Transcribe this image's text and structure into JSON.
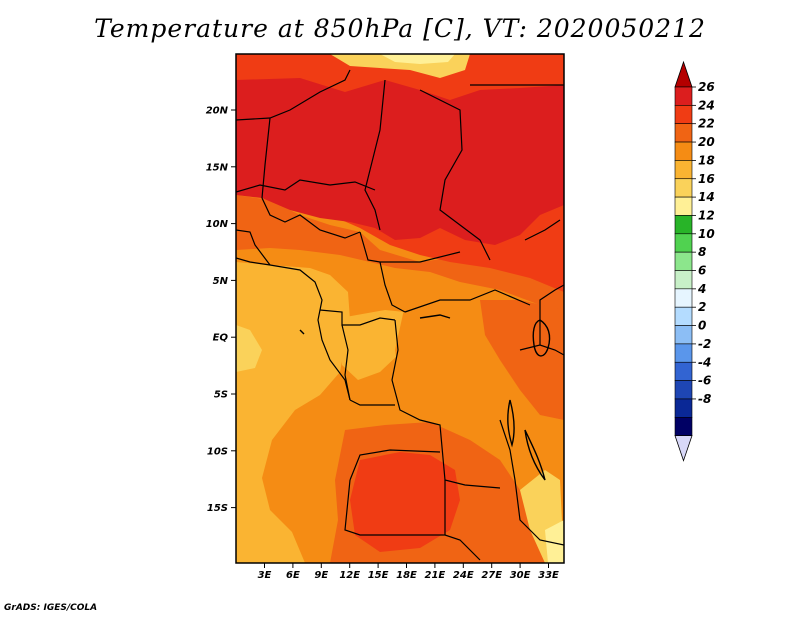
{
  "title": "Temperature at 850hPa [C], VT: 2020050212",
  "credit": "GrADS: IGES/COLA",
  "map": {
    "lat_labels": [
      "20N",
      "15N",
      "10N",
      "5N",
      "EQ",
      "5S",
      "10S",
      "15S"
    ],
    "lon_labels": [
      "3E",
      "6E",
      "9E",
      "12E",
      "15E",
      "18E",
      "21E",
      "24E",
      "27E",
      "30E",
      "33E"
    ]
  },
  "colorbar": {
    "labels": [
      "26",
      "24",
      "22",
      "20",
      "18",
      "16",
      "14",
      "12",
      "10",
      "8",
      "6",
      "4",
      "2",
      "0",
      "-2",
      "-4",
      "-6",
      "-8"
    ],
    "colors": [
      "#b40000",
      "#dc1e1e",
      "#f03c14",
      "#f06414",
      "#f58c14",
      "#fab432",
      "#fad25a",
      "#fff096",
      "#28b428",
      "#50d250",
      "#8ce68c",
      "#c8f0c8",
      "#e6f5ff",
      "#b4dcff",
      "#8cbef5",
      "#5a96eb",
      "#3264d2",
      "#1e46b4",
      "#0a2896",
      "#000064",
      "#d8d8f8"
    ]
  },
  "colors": {
    "c26": "#b40000",
    "c24": "#dc1e1e",
    "c22": "#f03c14",
    "c20": "#f06414",
    "c18": "#f58c14",
    "c16": "#fab432",
    "c14": "#fad25a",
    "pale": "#fff096"
  }
}
